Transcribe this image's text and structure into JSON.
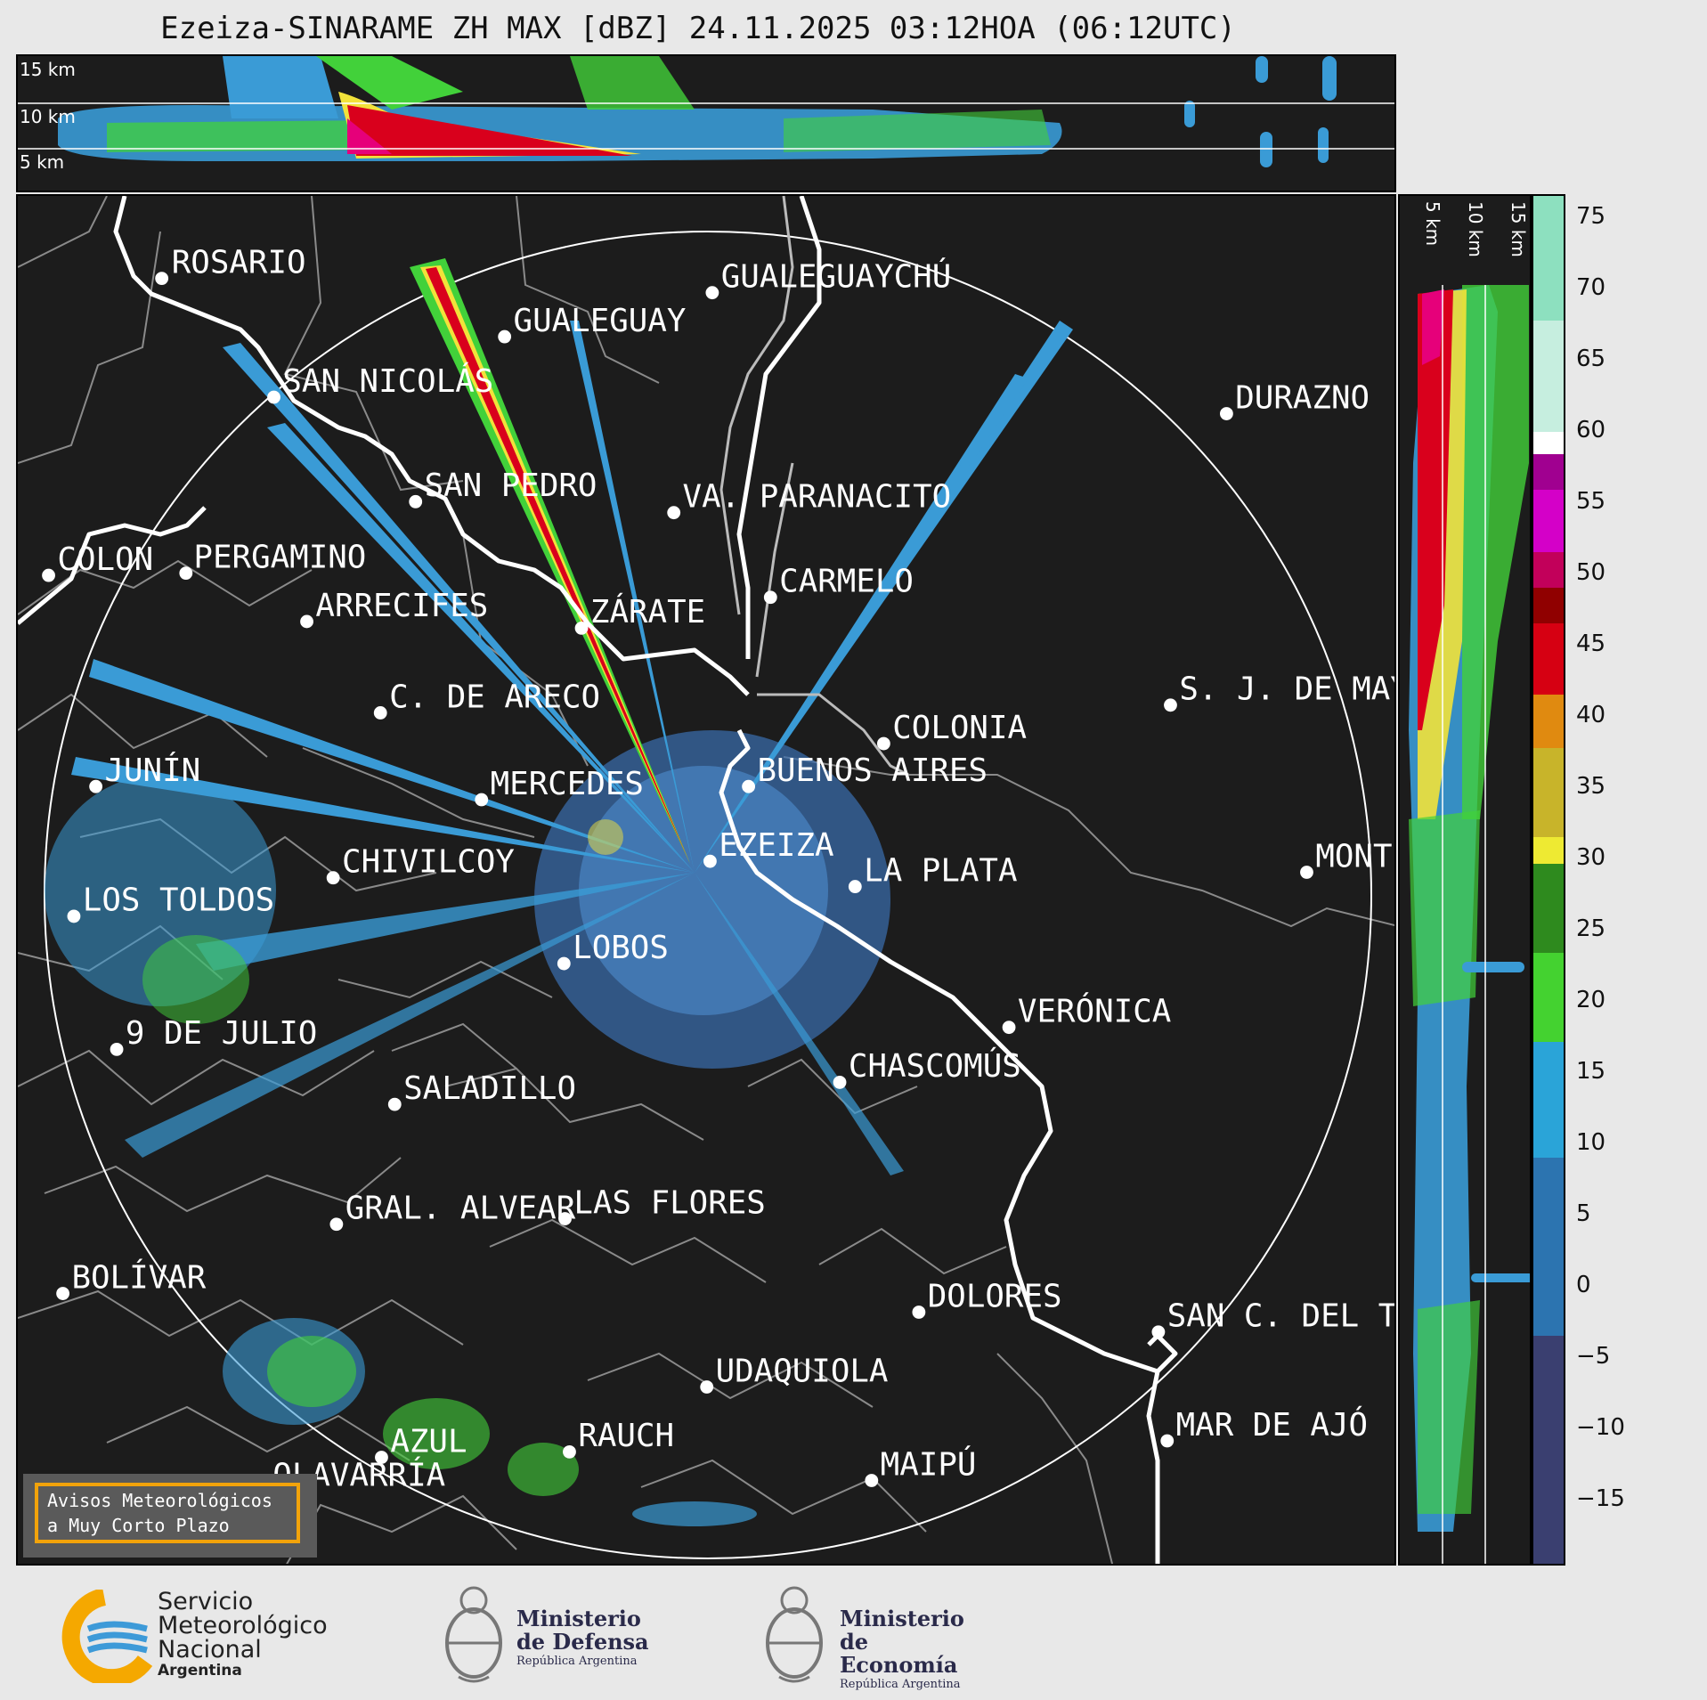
{
  "title": "Ezeiza-SINARAME ZH MAX [dBZ] 24.11.2025 03:12HOA (06:12UTC)",
  "top_axis_labels": [
    "15 km",
    "10 km",
    "5 km"
  ],
  "side_axis_labels": [
    "5 km",
    "10 km",
    "15 km"
  ],
  "colorbar": {
    "ticks": [
      "75",
      "70",
      "65",
      "60",
      "55",
      "50",
      "45",
      "40",
      "35",
      "30",
      "25",
      "20",
      "15",
      "10",
      "5",
      "0",
      "−5",
      "−10",
      "−15"
    ]
  },
  "cities": [
    {
      "name": "ROSARIO"
    },
    {
      "name": "GUALEGUAYCHÚ"
    },
    {
      "name": "GUALEGUAY"
    },
    {
      "name": "SAN NICOLÁS"
    },
    {
      "name": "DURAZNO"
    },
    {
      "name": "SAN PEDRO"
    },
    {
      "name": "VA. PARANACITO"
    },
    {
      "name": "COLON"
    },
    {
      "name": "PERGAMINO"
    },
    {
      "name": "CARMELO"
    },
    {
      "name": "ARRECIFES"
    },
    {
      "name": "ZÁRATE"
    },
    {
      "name": "S. J. DE MAYO"
    },
    {
      "name": "C. DE ARECO"
    },
    {
      "name": "COLONIA"
    },
    {
      "name": "JUNÍN"
    },
    {
      "name": "BUENOS AIRES"
    },
    {
      "name": "MERCEDES"
    },
    {
      "name": "EZEIZA"
    },
    {
      "name": "MONTEV"
    },
    {
      "name": "CHIVILCOY"
    },
    {
      "name": "LA PLATA"
    },
    {
      "name": "LOS TOLDOS"
    },
    {
      "name": "LOBOS"
    },
    {
      "name": "VERÓNICA"
    },
    {
      "name": "9 DE JULIO"
    },
    {
      "name": "CHASCOMÚS"
    },
    {
      "name": "SALADILLO"
    },
    {
      "name": "GRAL. ALVEAR"
    },
    {
      "name": "LAS FLORES"
    },
    {
      "name": "BOLÍVAR"
    },
    {
      "name": "DOLORES"
    },
    {
      "name": "SAN C. DEL TUYÚ"
    },
    {
      "name": "UDAQUIOLA"
    },
    {
      "name": "MAR DE AJÓ"
    },
    {
      "name": "RAUCH"
    },
    {
      "name": "AZUL"
    },
    {
      "name": "MAIPÚ"
    },
    {
      "name": "OLAVARRÍA"
    }
  ],
  "notice": {
    "line1": "Avisos Meteorológicos",
    "line2": "a Muy Corto Plazo"
  },
  "logos": {
    "smn": {
      "line1": "Servicio",
      "line2": "Meteorológico",
      "line3": "Nacional",
      "line4": "Argentina"
    },
    "defensa": {
      "line1": "Ministerio",
      "line2": "de Defensa",
      "line3": "República Argentina"
    },
    "economia": {
      "line1": "Ministerio",
      "line2": "de Economía",
      "line3": "República Argentina"
    }
  },
  "colors": {
    "background": "#1c1c1c",
    "coast": "#ffffff",
    "borders": "#8a8a8a",
    "smn_orange": "#f5a800",
    "smn_blue": "#3d9ad8"
  }
}
